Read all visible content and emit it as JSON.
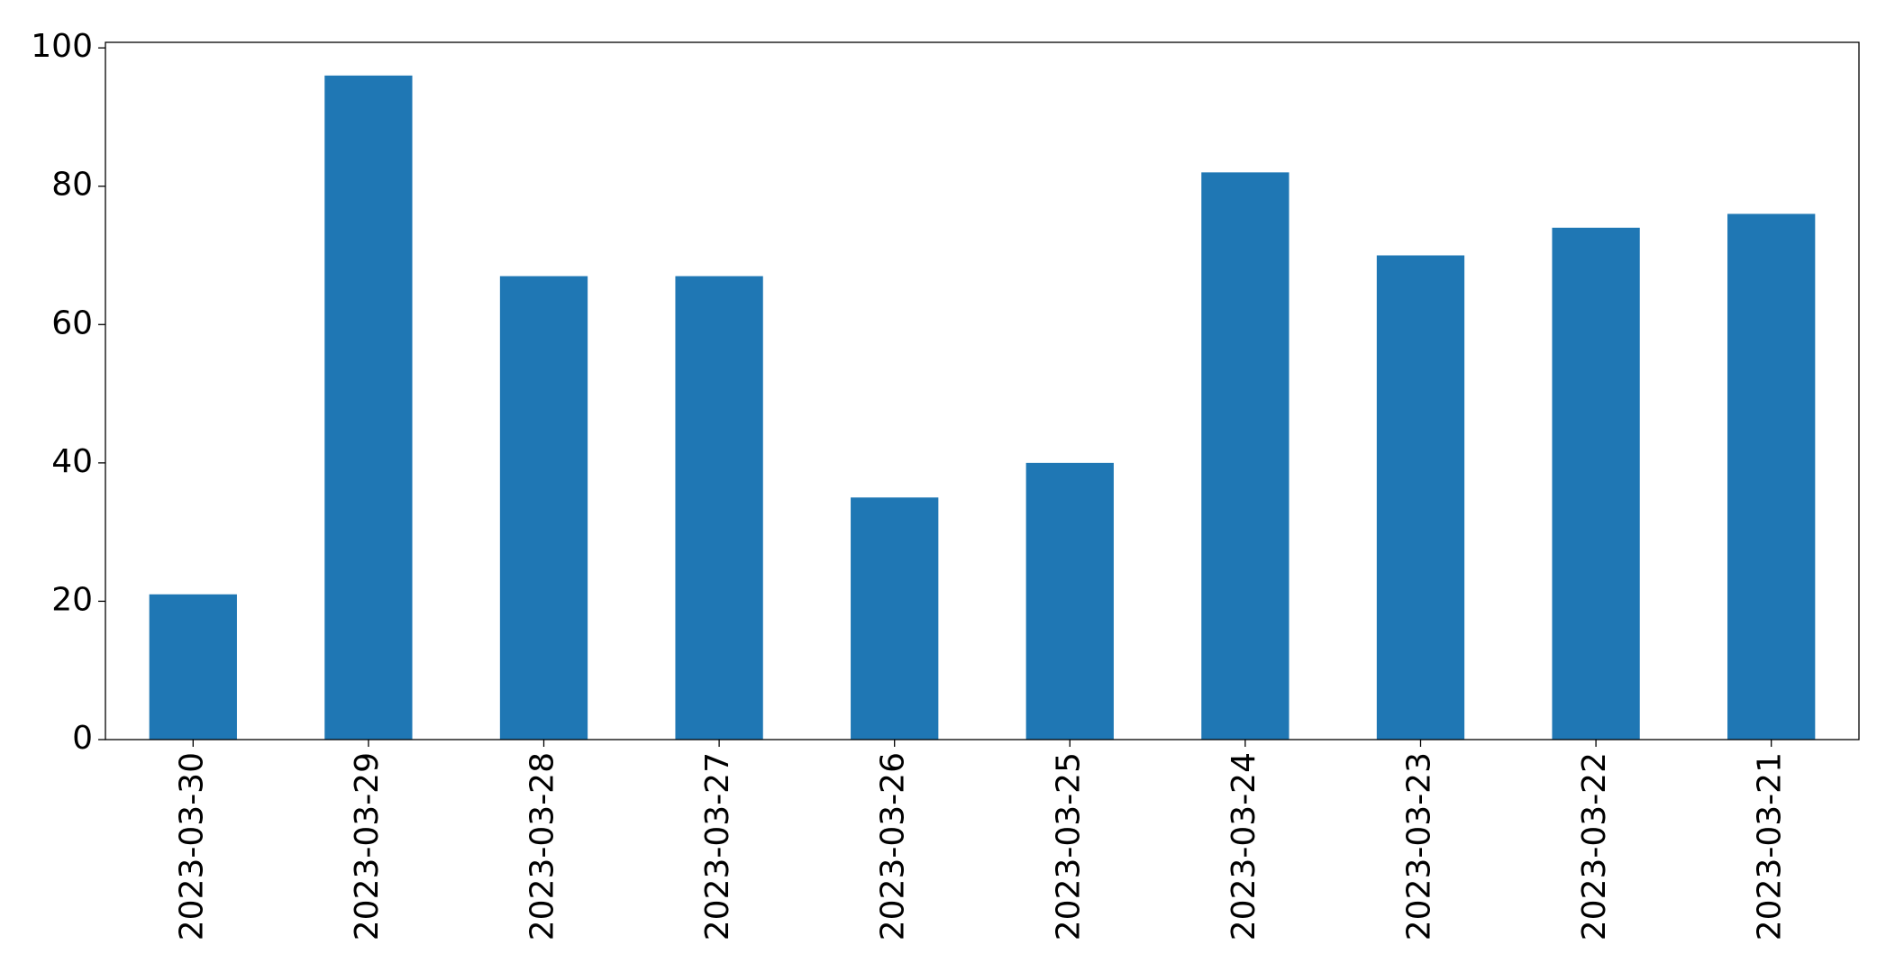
{
  "chart_data": {
    "type": "bar",
    "categories": [
      "2023-03-30",
      "2023-03-29",
      "2023-03-28",
      "2023-03-27",
      "2023-03-26",
      "2023-03-25",
      "2023-03-24",
      "2023-03-23",
      "2023-03-22",
      "2023-03-21"
    ],
    "values": [
      21,
      96,
      67,
      67,
      35,
      40,
      82,
      70,
      74,
      76
    ],
    "color": "#1f77b4",
    "ylim": [
      0,
      100.8
    ],
    "yticks": [
      0,
      20,
      40,
      60,
      80,
      100
    ],
    "grid": false
  }
}
